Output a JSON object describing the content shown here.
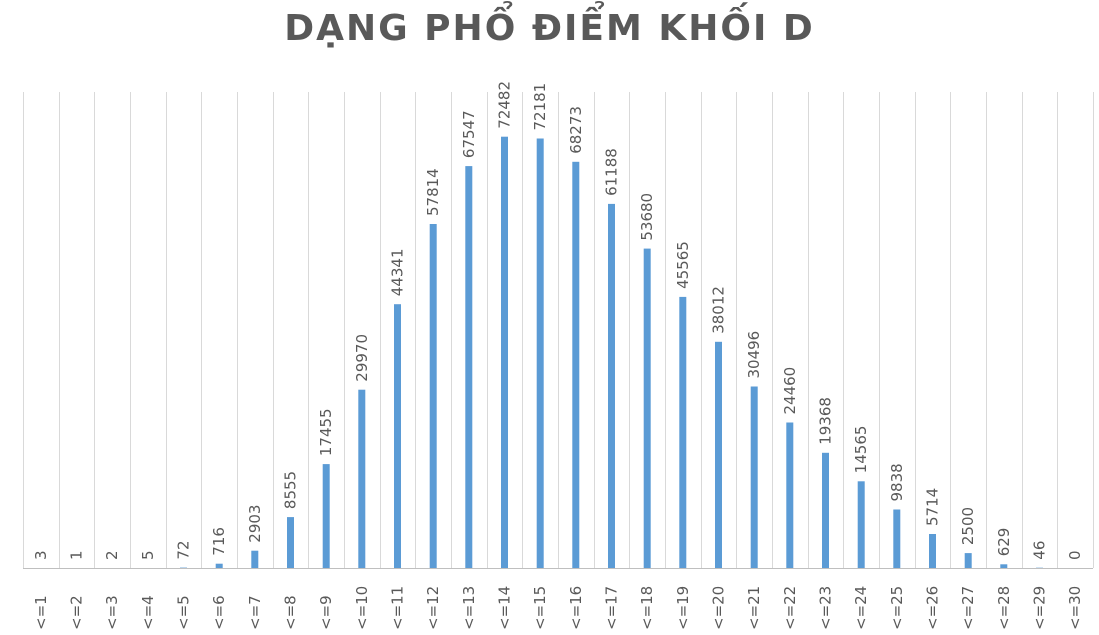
{
  "chart_data": {
    "type": "bar",
    "title": "DẠNG PHỔ ĐIỂM KHỐI D",
    "xlabel": "",
    "ylabel": "",
    "categories": [
      "<=1",
      "<=2",
      "<=3",
      "<=4",
      "<=5",
      "<=6",
      "<=7",
      "<=8",
      "<=9",
      "<=10",
      "<=11",
      "<=12",
      "<=13",
      "<=14",
      "<=15",
      "<=16",
      "<=17",
      "<=18",
      "<=19",
      "<=20",
      "<=21",
      "<=22",
      "<=23",
      "<=24",
      "<=25",
      "<=26",
      "<=27",
      "<=28",
      "<=29",
      "<=30"
    ],
    "values": [
      3,
      1,
      2,
      5,
      72,
      716,
      2903,
      8555,
      17455,
      29970,
      44341,
      57814,
      67547,
      72482,
      72181,
      68273,
      61188,
      53680,
      45565,
      38012,
      30496,
      24460,
      19368,
      14565,
      9838,
      5714,
      2500,
      629,
      46,
      0
    ],
    "ylim": [
      0,
      80000
    ],
    "grid": true,
    "legend": "none",
    "bar_color": "#5b9bd5"
  }
}
